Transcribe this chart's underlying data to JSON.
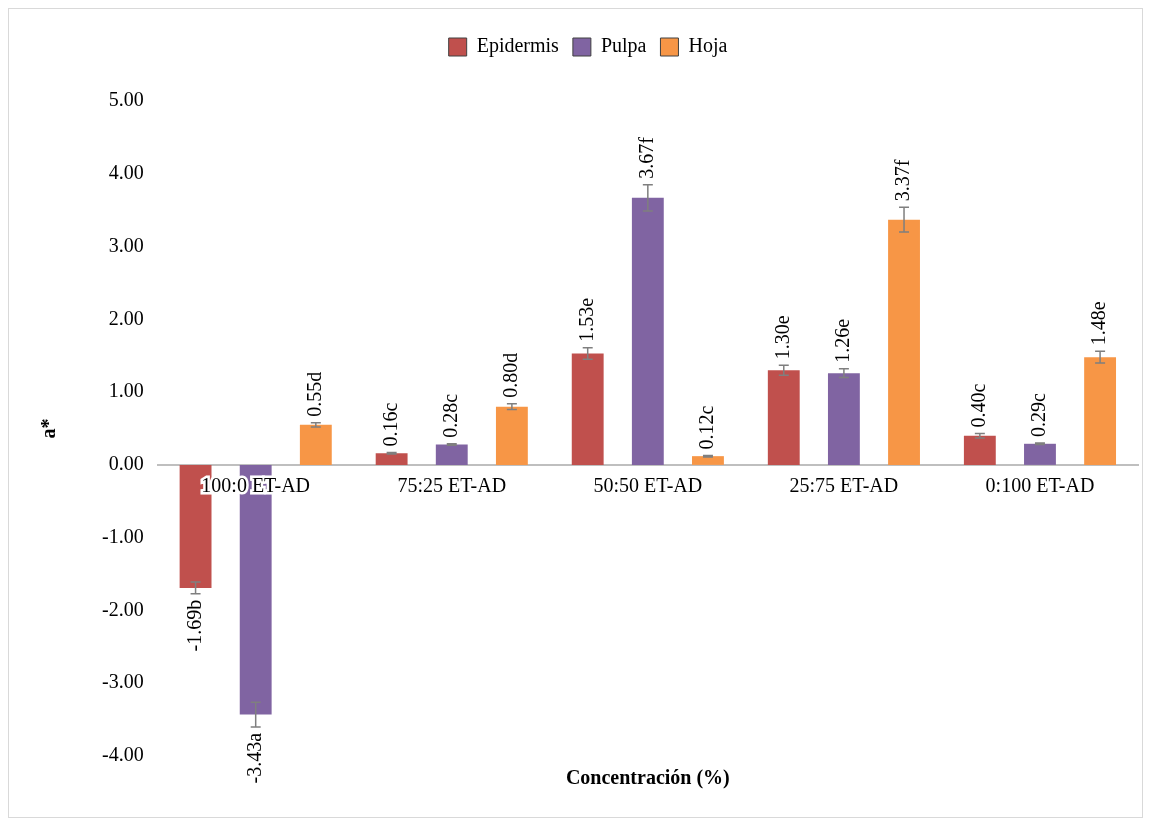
{
  "chart_data": {
    "type": "bar",
    "xlabel": "Concentración (%)",
    "ylabel": "a*",
    "categories": [
      "100:0 ET-AD",
      "75:25 ET-AD",
      "50:50 ET-AD",
      "25:75 ET-AD",
      "0:100 ET-AD"
    ],
    "series": [
      {
        "name": "Epidermis",
        "color": "#c0504d",
        "values": [
          -1.69,
          0.16,
          1.53,
          1.3,
          0.4
        ],
        "errors": [
          0.08,
          0.01,
          0.08,
          0.07,
          0.03
        ],
        "value_labels": [
          "-1.69b",
          "0.16c",
          "1.53e",
          "1.30e",
          "0.40c"
        ]
      },
      {
        "name": "Pulpa",
        "color": "#8064a2",
        "values": [
          -3.43,
          0.28,
          3.67,
          1.26,
          0.29
        ],
        "errors": [
          0.17,
          0.01,
          0.18,
          0.06,
          0.01
        ],
        "value_labels": [
          "-3.43a",
          "0.28c",
          "3.67f",
          "1.26e",
          "0.29c"
        ]
      },
      {
        "name": "Hoja",
        "color": "#f79646",
        "values": [
          0.55,
          0.8,
          0.12,
          3.37,
          1.48
        ],
        "errors": [
          0.03,
          0.04,
          0.01,
          0.17,
          0.08
        ],
        "value_labels": [
          "0.55d",
          "0.80d",
          "0.12c",
          "3.37f",
          "1.48e"
        ]
      }
    ],
    "ylim": [
      -4,
      5
    ],
    "yticks": [
      {
        "value": -4,
        "label": "-4.00"
      },
      {
        "value": -3,
        "label": "-3.00"
      },
      {
        "value": -2,
        "label": "-2.00"
      },
      {
        "value": -1,
        "label": "-1.00"
      },
      {
        "value": 0,
        "label": "0.00"
      },
      {
        "value": 1,
        "label": "1.00"
      },
      {
        "value": 2,
        "label": "2.00"
      },
      {
        "value": 3,
        "label": "3.00"
      },
      {
        "value": 4,
        "label": "4.00"
      },
      {
        "value": 5,
        "label": "5.00"
      }
    ],
    "grid": false,
    "legend": "top"
  }
}
